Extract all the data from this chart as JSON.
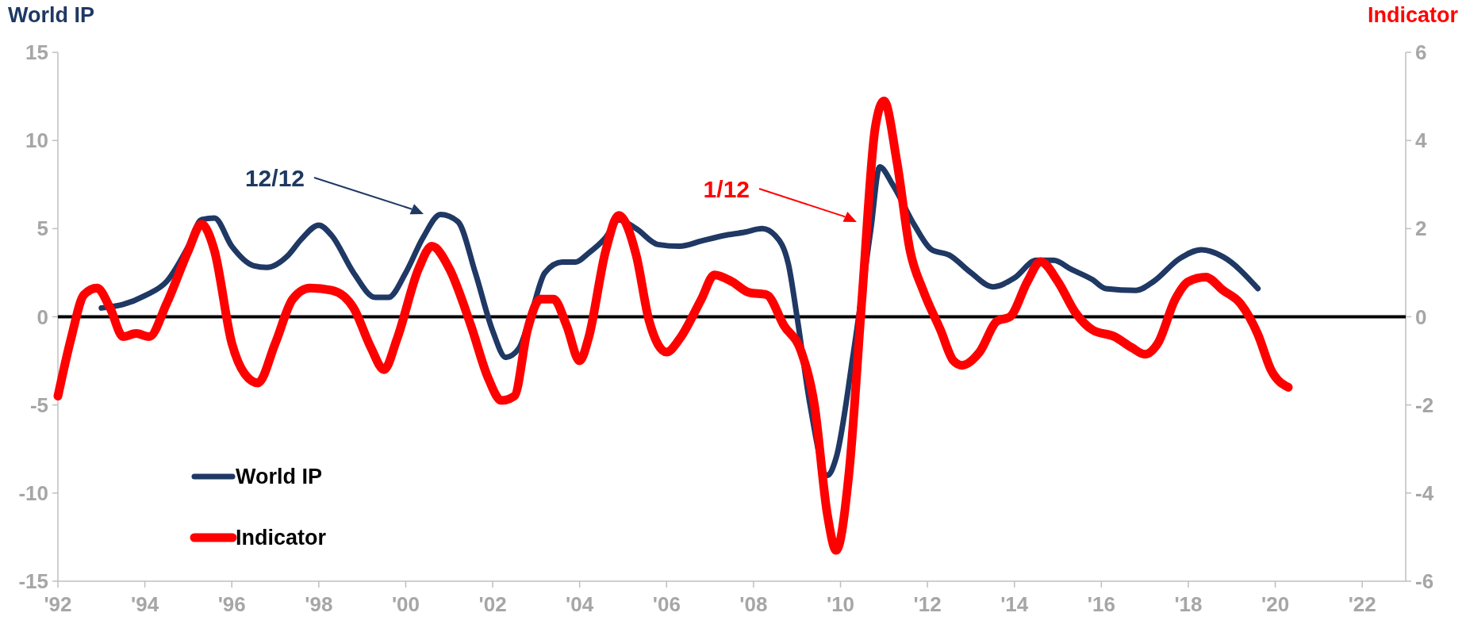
{
  "chart_data": {
    "type": "line",
    "ylabel": "World IP",
    "y2label": "Indicator",
    "xlim": [
      1992,
      2023
    ],
    "xticks": [
      {
        "value": 1992,
        "label": "'92"
      },
      {
        "value": 1994,
        "label": "'94"
      },
      {
        "value": 1996,
        "label": "'96"
      },
      {
        "value": 1998,
        "label": "'98"
      },
      {
        "value": 2000,
        "label": "'00"
      },
      {
        "value": 2002,
        "label": "'02"
      },
      {
        "value": 2004,
        "label": "'04"
      },
      {
        "value": 2006,
        "label": "'06"
      },
      {
        "value": 2008,
        "label": "'08"
      },
      {
        "value": 2010,
        "label": "'10"
      },
      {
        "value": 2012,
        "label": "'12"
      },
      {
        "value": 2014,
        "label": "'14"
      },
      {
        "value": 2016,
        "label": "'16"
      },
      {
        "value": 2018,
        "label": "'18"
      },
      {
        "value": 2020,
        "label": "'20"
      },
      {
        "value": 2022,
        "label": "'22"
      }
    ],
    "ylim": [
      -15,
      15
    ],
    "yticks": [
      -15,
      -10,
      -5,
      0,
      5,
      10,
      15
    ],
    "y2lim": [
      -6,
      6
    ],
    "y2ticks": [
      -6,
      -4,
      -2,
      0,
      2,
      4,
      6
    ],
    "grid": false,
    "legend": "bottom left",
    "ref_lines": [
      {
        "axis": "y",
        "value": 0,
        "color": "#000000"
      }
    ],
    "annotations": [
      "12/12",
      "1/12"
    ],
    "series": [
      {
        "name": "World IP",
        "color": "#1f3864",
        "x": [
          1993.0,
          1993.5,
          1994,
          1994.5,
          1995,
          1995.3,
          1995.6,
          1996,
          1996.5,
          1996.8,
          1997.3,
          1997.6,
          1998,
          1998.3,
          1998.8,
          1999.3,
          1999.6,
          2000,
          2000.4,
          2000.8,
          2001.2,
          2001.6,
          2002,
          2002.3,
          2002.6,
          2002.9,
          2003.2,
          2003.6,
          2003.9,
          2004.2,
          2004.6,
          2004.9,
          2005.3,
          2005.8,
          2006.3,
          2006.8,
          2007.3,
          2007.8,
          2008.2,
          2008.5,
          2008.8,
          2009.0,
          2009.3,
          2009.7,
          2009.9,
          2010.3,
          2010.7,
          2010.9,
          2011.2,
          2011.7,
          2012.1,
          2012.5,
          2013,
          2013.5,
          2014,
          2014.5,
          2014.9,
          2015.3,
          2015.8,
          2016.1,
          2016.8,
          2017.2,
          2017.8,
          2018.3,
          2018.8,
          2019.6
        ],
        "values": [
          0.5,
          0.7,
          1.2,
          2.0,
          4.0,
          5.5,
          5.6,
          4.0,
          2.9,
          2.8,
          3.5,
          4.4,
          5.2,
          4.6,
          2.5,
          1.1,
          1.1,
          2.5,
          4.5,
          5.8,
          5.4,
          2.5,
          -0.8,
          -2.3,
          -1.8,
          0.3,
          2.5,
          3.1,
          3.1,
          3.6,
          4.5,
          5.5,
          5.0,
          4.1,
          4.0,
          4.3,
          4.6,
          4.8,
          5.0,
          4.6,
          3.0,
          0.0,
          -5.0,
          -9.0,
          -8.0,
          -2.0,
          5.0,
          8.5,
          7.5,
          5.2,
          3.8,
          3.5,
          2.5,
          1.7,
          2.2,
          3.2,
          3.2,
          2.7,
          2.1,
          1.6,
          1.5,
          2.0,
          3.3,
          3.8,
          3.4,
          1.6
        ]
      },
      {
        "name": "Indicator",
        "color": "#ff0000",
        "axis": "y2",
        "x": [
          1992.0,
          1992.3,
          1992.6,
          1992.9,
          1993.2,
          1993.5,
          1993.8,
          1994.1,
          1994.5,
          1995,
          1995.3,
          1995.6,
          1996,
          1996.3,
          1996.6,
          1997,
          1997.4,
          1997.8,
          1998.3,
          1998.8,
          1999.2,
          1999.5,
          1999.8,
          2000.3,
          2000.6,
          2001,
          2001.5,
          2001.9,
          2002.2,
          2002.5,
          2002.8,
          2003.1,
          2003.4,
          2003.7,
          2004.0,
          2004.2,
          2004.6,
          2004.9,
          2005.3,
          2005.6,
          2006.0,
          2006.3,
          2006.8,
          2007.1,
          2007.5,
          2007.9,
          2008.3,
          2008.7,
          2009.1,
          2009.4,
          2009.7,
          2009.9,
          2010.2,
          2010.5,
          2010.8,
          2011.0,
          2011.3,
          2011.6,
          2011.9,
          2012.3,
          2012.6,
          2012.8,
          2013.2,
          2013.6,
          2013.9,
          2014.3,
          2014.6,
          2015.0,
          2015.4,
          2015.8,
          2016.3,
          2016.7,
          2017.0,
          2017.3,
          2017.7,
          2018.0,
          2018.4,
          2018.8,
          2019.2,
          2019.6,
          2019.9,
          2020.3
        ],
        "values": [
          -1.8,
          -0.5,
          0.5,
          0.65,
          0.2,
          -0.45,
          -0.38,
          -0.45,
          0.3,
          1.5,
          2.1,
          1.5,
          -0.6,
          -1.3,
          -1.5,
          -0.6,
          0.4,
          0.65,
          0.6,
          0.2,
          -0.7,
          -1.2,
          -0.5,
          1.1,
          1.6,
          1.1,
          -0.2,
          -1.4,
          -1.9,
          -1.8,
          -0.3,
          0.4,
          0.4,
          -0.2,
          -1.0,
          -0.5,
          1.5,
          2.3,
          1.4,
          -0.1,
          -0.8,
          -0.5,
          0.4,
          0.95,
          0.8,
          0.55,
          0.5,
          -0.2,
          -0.8,
          -2.0,
          -4.5,
          -5.3,
          -3.5,
          0.5,
          4.3,
          4.9,
          3.5,
          1.5,
          0.6,
          -0.3,
          -1.0,
          -1.1,
          -0.8,
          -0.1,
          0,
          0.8,
          1.25,
          0.8,
          0.1,
          -0.3,
          -0.45,
          -0.7,
          -0.85,
          -0.6,
          0.4,
          0.8,
          0.9,
          0.6,
          0.3,
          -0.4,
          -1.2,
          -1.6
        ]
      }
    ]
  }
}
